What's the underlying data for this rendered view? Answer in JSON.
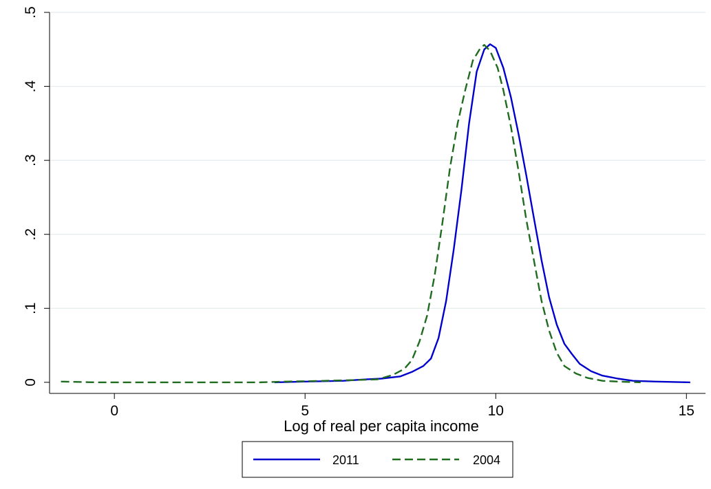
{
  "chart_data": {
    "type": "line",
    "title": "",
    "xlabel": "Log of real per capita income",
    "ylabel": "",
    "xlim": [
      -1.7,
      15.5
    ],
    "ylim": [
      -0.015,
      0.5
    ],
    "x_ticks": [
      {
        "value": 0,
        "label": "0"
      },
      {
        "value": 5,
        "label": "5"
      },
      {
        "value": 10,
        "label": "10"
      },
      {
        "value": 15,
        "label": "15"
      }
    ],
    "y_ticks": [
      {
        "value": 0,
        "label": "0"
      },
      {
        "value": 0.1,
        "label": ".1"
      },
      {
        "value": 0.2,
        "label": ".2"
      },
      {
        "value": 0.3,
        "label": ".3"
      },
      {
        "value": 0.4,
        "label": ".4"
      },
      {
        "value": 0.5,
        "label": ".5"
      }
    ],
    "grid": "horizontal",
    "legend_position": "bottom",
    "series": [
      {
        "name": "2011",
        "color": "#0000cc",
        "dash": "solid",
        "points": [
          [
            4.2,
            0.0
          ],
          [
            5.0,
            0.001
          ],
          [
            6.0,
            0.002
          ],
          [
            6.6,
            0.004
          ],
          [
            7.0,
            0.005
          ],
          [
            7.5,
            0.008
          ],
          [
            7.8,
            0.014
          ],
          [
            8.1,
            0.022
          ],
          [
            8.3,
            0.032
          ],
          [
            8.5,
            0.06
          ],
          [
            8.7,
            0.11
          ],
          [
            8.9,
            0.18
          ],
          [
            9.1,
            0.26
          ],
          [
            9.3,
            0.35
          ],
          [
            9.5,
            0.42
          ],
          [
            9.7,
            0.45
          ],
          [
            9.85,
            0.457
          ],
          [
            10.0,
            0.452
          ],
          [
            10.2,
            0.425
          ],
          [
            10.4,
            0.385
          ],
          [
            10.6,
            0.335
          ],
          [
            10.8,
            0.28
          ],
          [
            11.0,
            0.222
          ],
          [
            11.2,
            0.165
          ],
          [
            11.4,
            0.115
          ],
          [
            11.6,
            0.078
          ],
          [
            11.8,
            0.052
          ],
          [
            12.0,
            0.038
          ],
          [
            12.2,
            0.025
          ],
          [
            12.5,
            0.015
          ],
          [
            12.8,
            0.009
          ],
          [
            13.2,
            0.005
          ],
          [
            13.6,
            0.002
          ],
          [
            14.2,
            0.001
          ],
          [
            15.1,
            0.0
          ]
        ]
      },
      {
        "name": "2004",
        "color": "#1f6b1f",
        "dash": "dashed",
        "points": [
          [
            -1.4,
            0.001
          ],
          [
            -0.5,
            0.0
          ],
          [
            1.0,
            0.0
          ],
          [
            2.5,
            0.0
          ],
          [
            3.8,
            0.0
          ],
          [
            4.5,
            0.001
          ],
          [
            5.5,
            0.002
          ],
          [
            6.3,
            0.003
          ],
          [
            6.9,
            0.004
          ],
          [
            7.3,
            0.01
          ],
          [
            7.6,
            0.018
          ],
          [
            7.8,
            0.03
          ],
          [
            8.0,
            0.055
          ],
          [
            8.2,
            0.09
          ],
          [
            8.4,
            0.145
          ],
          [
            8.6,
            0.215
          ],
          [
            8.8,
            0.29
          ],
          [
            9.0,
            0.35
          ],
          [
            9.2,
            0.395
          ],
          [
            9.4,
            0.435
          ],
          [
            9.6,
            0.452
          ],
          [
            9.7,
            0.456
          ],
          [
            9.85,
            0.448
          ],
          [
            10.05,
            0.425
          ],
          [
            10.2,
            0.395
          ],
          [
            10.4,
            0.345
          ],
          [
            10.6,
            0.285
          ],
          [
            10.8,
            0.22
          ],
          [
            11.0,
            0.165
          ],
          [
            11.2,
            0.11
          ],
          [
            11.4,
            0.07
          ],
          [
            11.6,
            0.04
          ],
          [
            11.8,
            0.022
          ],
          [
            12.1,
            0.012
          ],
          [
            12.4,
            0.006
          ],
          [
            12.8,
            0.002
          ],
          [
            13.2,
            0.001
          ],
          [
            13.8,
            0.0
          ]
        ]
      }
    ]
  }
}
